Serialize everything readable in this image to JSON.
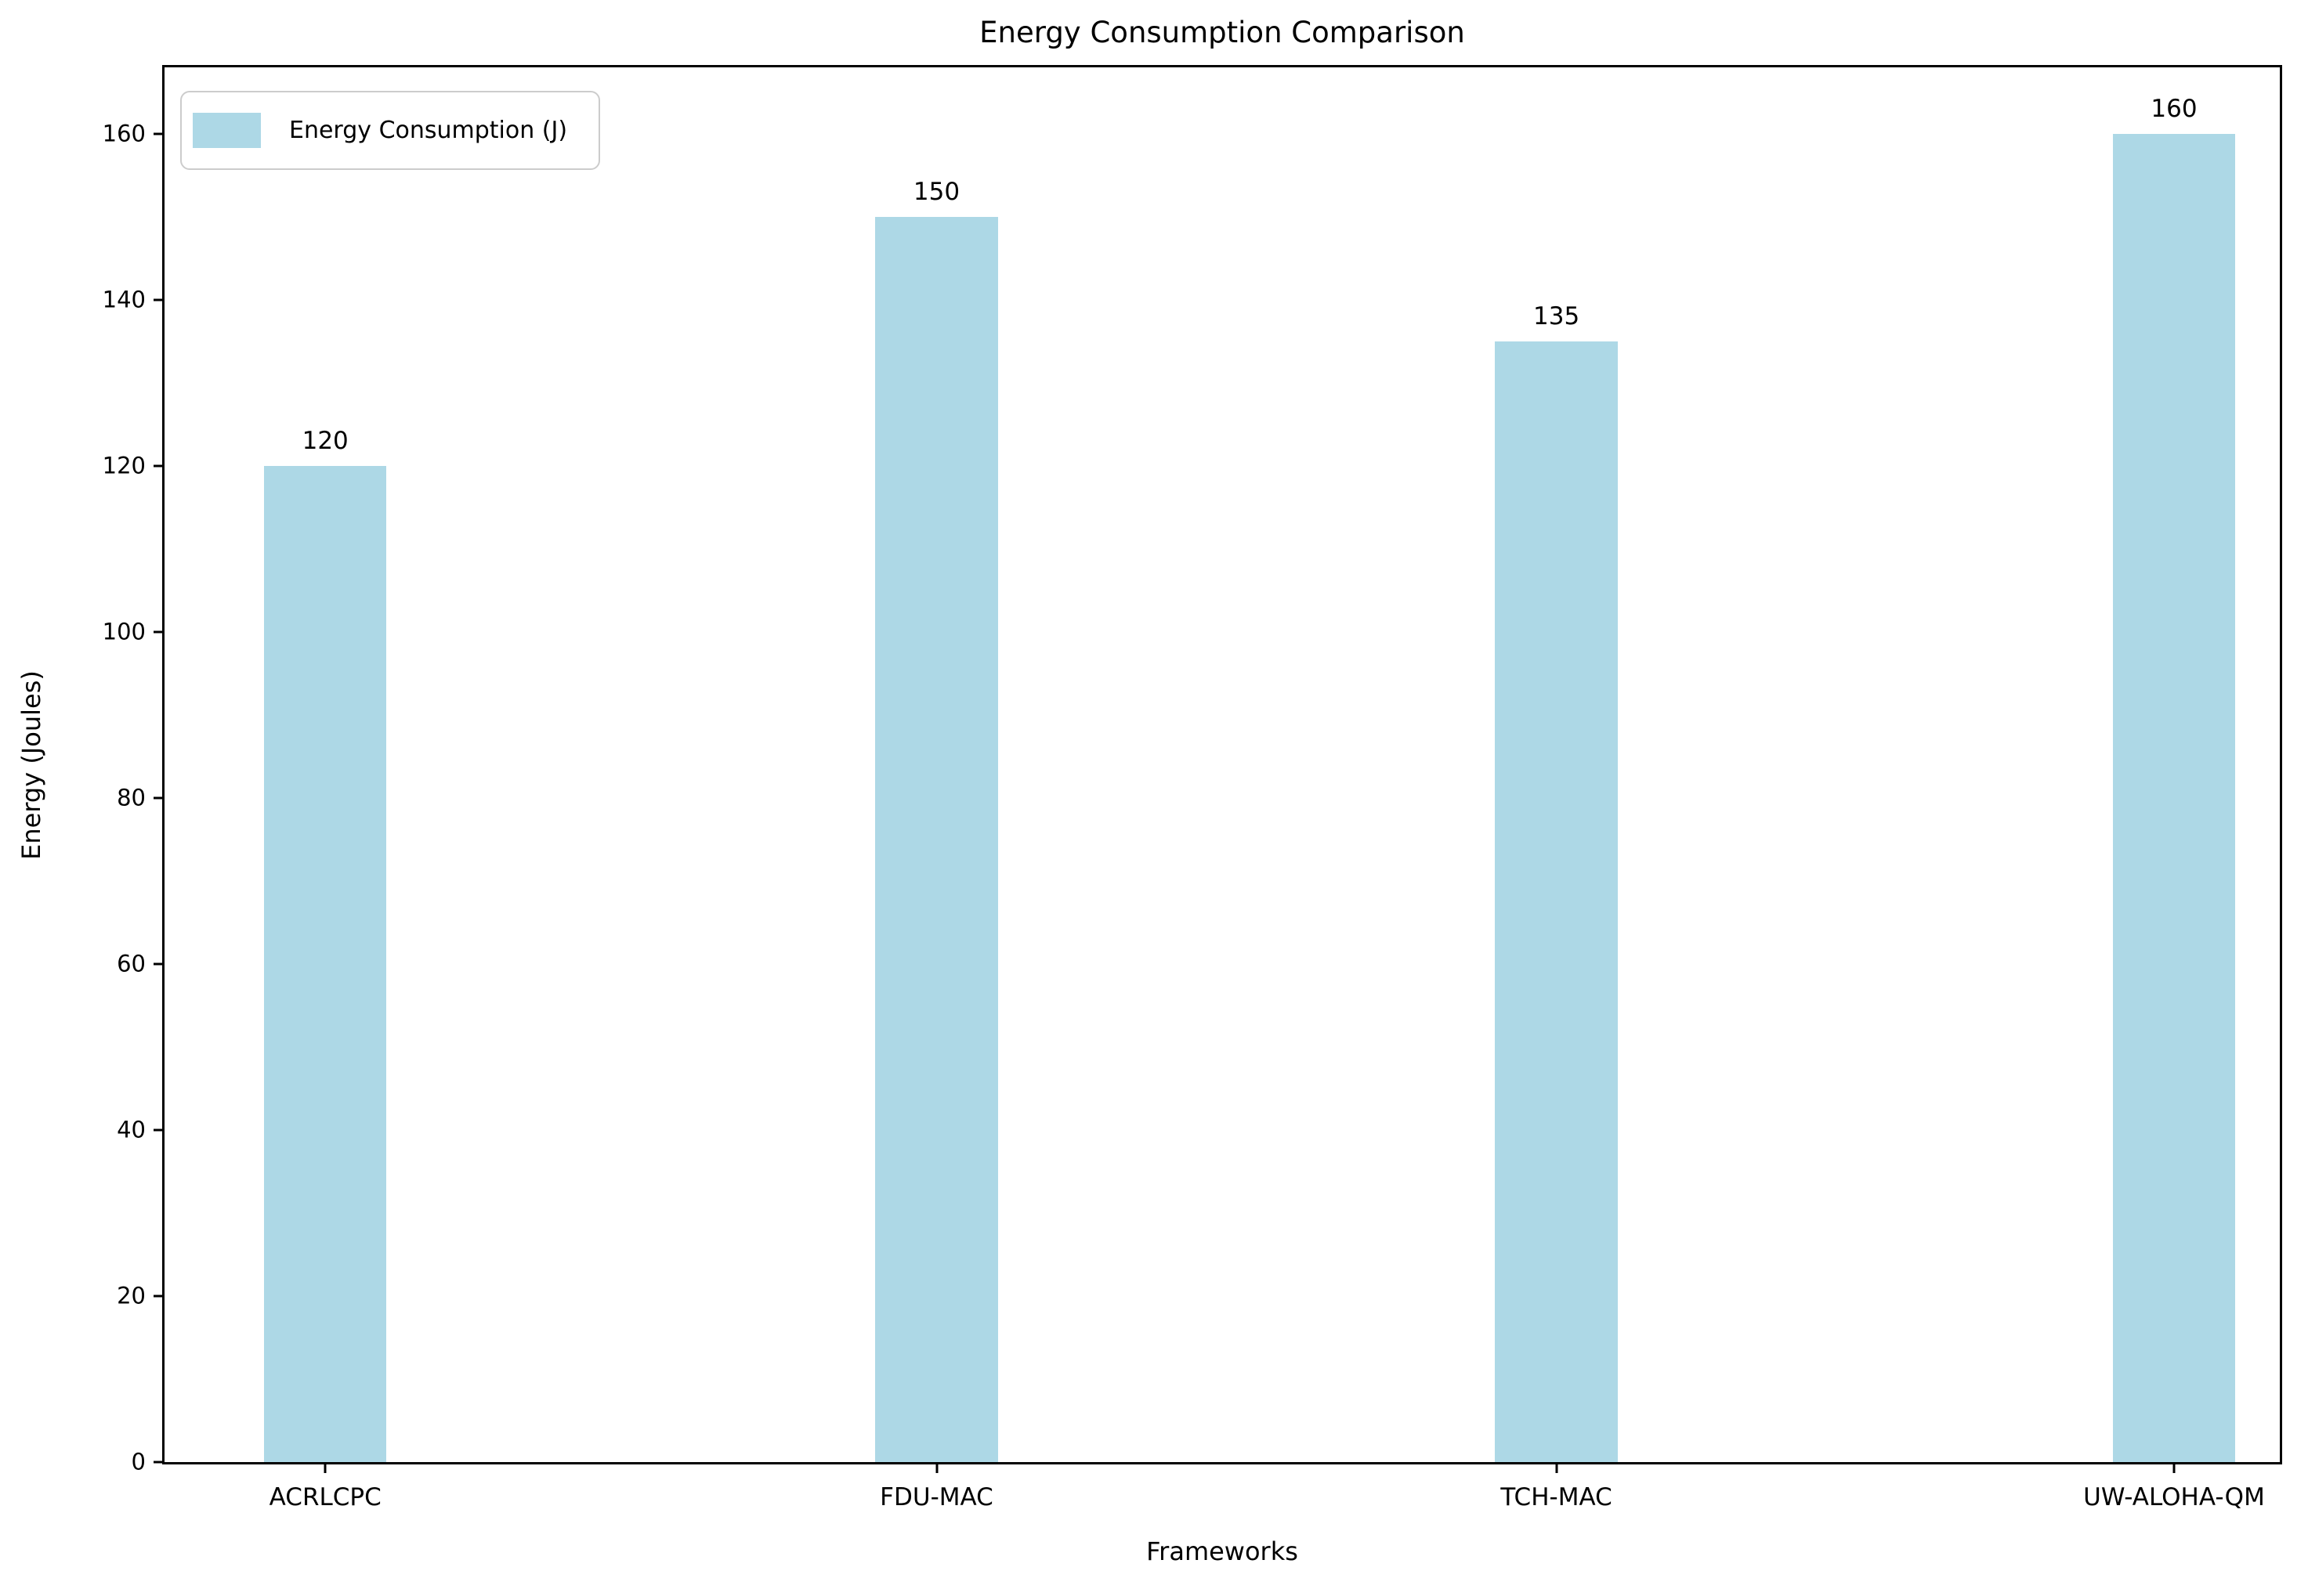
{
  "chart_data": {
    "type": "bar",
    "title": "Energy Consumption Comparison",
    "categories": [
      "ACRLCPC",
      "FDU-MAC",
      "TCH-MAC",
      "UW-ALOHA-QM"
    ],
    "values": [
      120,
      150,
      135,
      160
    ],
    "bar_value_labels": [
      "120",
      "150",
      "135",
      "160"
    ],
    "xlabel": "Frameworks",
    "ylabel": "Energy (Joules)",
    "ylim": [
      0,
      168
    ],
    "y_ticks": [
      0,
      20,
      40,
      60,
      80,
      100,
      120,
      140,
      160
    ],
    "grid": false,
    "bar_color": "#ADD8E6",
    "legend": {
      "position": "upper left",
      "entries": [
        {
          "label": "Energy Consumption (J)",
          "color": "#ADD8E6"
        }
      ]
    },
    "layout": {
      "x_centers_pct": [
        7.6,
        36.5,
        65.8,
        95.0
      ],
      "bar_width_pct": 5.8
    }
  }
}
